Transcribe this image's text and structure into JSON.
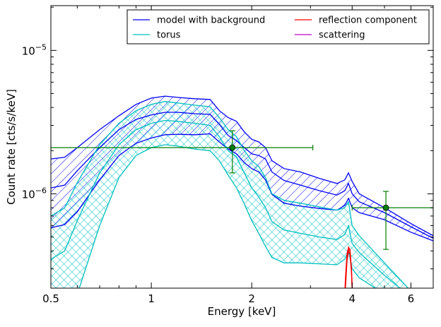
{
  "chart_data": {
    "type": "line",
    "xlabel": "Energy [keV]",
    "ylabel": "Count rate [cts/s/keV]",
    "xscale": "log",
    "yscale": "log",
    "xlim": [
      0.5,
      7.0
    ],
    "ylim": [
      2.2e-07,
      2.05e-05
    ],
    "x_ticks": [
      {
        "value": 0.5,
        "label": "0.5"
      },
      {
        "value": 1,
        "label": "1"
      },
      {
        "value": 2,
        "label": "2"
      },
      {
        "value": 4,
        "label": "4"
      },
      {
        "value": 6,
        "label": "6"
      }
    ],
    "y_ticks": [
      {
        "value": 1e-06,
        "base": "10",
        "exp": "−6"
      },
      {
        "value": 1e-05,
        "base": "10",
        "exp": "−5"
      }
    ],
    "legend": {
      "placement": "top-right",
      "entries": [
        {
          "label": "model with background",
          "color": "#0000ff"
        },
        {
          "label": "torus",
          "color": "#00bfbf"
        },
        {
          "label": "reflection component",
          "color": "#ff0000"
        },
        {
          "label": "scattering",
          "color": "#bf00bf"
        }
      ]
    },
    "series": [
      {
        "name": "model with background",
        "color": "#0000ff",
        "band": true,
        "x": [
          0.5,
          0.55,
          0.6,
          0.7,
          0.8,
          0.9,
          1.0,
          1.1,
          1.2,
          1.35,
          1.5,
          1.6,
          1.7,
          1.8,
          1.9,
          2.0,
          2.1,
          2.2,
          2.3,
          2.5,
          2.8,
          3.2,
          3.6,
          3.8,
          3.9,
          4.0,
          4.2,
          5.0,
          6.0,
          7.0
        ],
        "upper": [
          1.75e-06,
          1.8e-06,
          2.1e-06,
          2.8e-06,
          3.5e-06,
          4.2e-06,
          4.65e-06,
          4.8e-06,
          4.7e-06,
          4.6e-06,
          4.55e-06,
          3.8e-06,
          3.4e-06,
          3.2e-06,
          2.7e-06,
          2.4e-06,
          2.3e-06,
          2.1e-06,
          1.7e-06,
          1.5e-06,
          1.42e-06,
          1.28e-06,
          1.18e-06,
          1.25e-06,
          1.4e-06,
          1.22e-06,
          1e-06,
          8e-07,
          6.2e-07,
          5.1e-07
        ],
        "center": [
          1.1e-06,
          1.15e-06,
          1.45e-06,
          2.1e-06,
          2.8e-06,
          3.3e-06,
          3.55e-06,
          3.7e-06,
          3.7e-06,
          3.62e-06,
          3.58e-06,
          3.05e-06,
          2.55e-06,
          2.35e-06,
          2.1e-06,
          1.9e-06,
          1.85e-06,
          1.75e-06,
          1.42e-06,
          1.24e-06,
          1.15e-06,
          1.05e-06,
          9.8e-07,
          1.05e-06,
          1.18e-06,
          1e-06,
          8.8e-07,
          7.4e-07,
          5.9e-07,
          4.9e-07
        ],
        "lower": [
          5.8e-07,
          6.1e-07,
          7.5e-07,
          1.25e-06,
          1.85e-06,
          2.25e-06,
          2.45e-06,
          2.58e-06,
          2.6e-06,
          2.58e-06,
          2.62e-06,
          2.3e-06,
          2.05e-06,
          1.9e-06,
          1.65e-06,
          1.5e-06,
          1.42e-06,
          1.25e-06,
          9.9e-07,
          8.6e-07,
          8.2e-07,
          7.9e-07,
          7.7e-07,
          8.3e-07,
          9.3e-07,
          8e-07,
          7.4e-07,
          6.6e-07,
          5.4e-07,
          4.7e-07
        ]
      },
      {
        "name": "torus",
        "color": "#00bfbf",
        "band": true,
        "x": [
          0.5,
          0.55,
          0.6,
          0.7,
          0.8,
          0.9,
          1.0,
          1.1,
          1.2,
          1.35,
          1.5,
          1.6,
          1.7,
          1.8,
          1.9,
          2.0,
          2.1,
          2.2,
          2.3,
          2.5,
          2.8,
          3.2,
          3.6,
          3.8,
          3.9,
          4.0,
          4.2,
          5.0,
          6.0
        ],
        "upper": [
          7e-07,
          8e-07,
          1.2e-06,
          2.2e-06,
          3.1e-06,
          3.8e-06,
          4.2e-06,
          4.4e-06,
          4.3e-06,
          4.15e-06,
          4.05e-06,
          3.4e-06,
          2.8e-06,
          2.5e-06,
          2e-06,
          1.7e-06,
          1.55e-06,
          1.3e-06,
          1e-06,
          9e-07,
          8.6e-07,
          8.1e-07,
          7.7e-07,
          8e-07,
          8.8e-07,
          6e-07,
          5.1e-07,
          3.3e-07,
          2.1e-07
        ],
        "center": [
          3.5e-07,
          4e-07,
          6.5e-07,
          1.4e-06,
          2.2e-06,
          2.8e-06,
          3.1e-06,
          3.25e-06,
          3.2e-06,
          3.1e-06,
          3e-06,
          2.5e-06,
          2e-06,
          1.8e-06,
          1.4e-06,
          1.1e-06,
          9.5e-07,
          8e-07,
          6.4e-07,
          5.6e-07,
          5.3e-07,
          5e-07,
          4.8e-07,
          5.2e-07,
          6e-07,
          4.5e-07,
          3.9e-07,
          2.7e-07,
          1.9e-07
        ],
        "lower": [
          1.2e-07,
          1.6e-07,
          2e-07,
          6e-07,
          1.3e-06,
          1.85e-06,
          2.1e-06,
          2.2e-06,
          2.15e-06,
          2.05e-06,
          2e-06,
          1.7e-06,
          1.35e-06,
          1.1e-06,
          8.5e-07,
          6.5e-07,
          5.3e-07,
          4.3e-07,
          3.6e-07,
          3.3e-07,
          3.3e-07,
          3.25e-07,
          3.2e-07,
          3.5e-07,
          4e-07,
          3e-07,
          2.6e-07,
          2e-07,
          1.6e-07
        ]
      },
      {
        "name": "reflection component",
        "color": "#ff0000",
        "band": false,
        "x": [
          3.78,
          3.82,
          3.86,
          3.9,
          3.94,
          3.98,
          4.02,
          4.06
        ],
        "upper": [
          1.5e-07,
          2.6e-07,
          3.8e-07,
          4.25e-07,
          4.1e-07,
          3e-07,
          1.8e-07,
          1.3e-07
        ],
        "center": [
          1.4e-07,
          2.4e-07,
          3.6e-07,
          4.1e-07,
          4e-07,
          2.9e-07,
          1.7e-07,
          1.2e-07
        ],
        "lower": [
          1.3e-07,
          2.2e-07,
          3.4e-07,
          3.95e-07,
          3.85e-07,
          2.8e-07,
          1.6e-07,
          1.1e-07
        ]
      },
      {
        "name": "data",
        "color": "#007f00",
        "points": [
          {
            "x": 1.75,
            "y": 2.1e-06,
            "xerr": [
              0.5,
              3.05
            ],
            "yerr": [
              1.4e-06,
              2.75e-06
            ]
          },
          {
            "x": 5.05,
            "y": 8e-07,
            "xerr": [
              4.0,
              7.0
            ],
            "yerr": [
              4.1e-07,
              1.04e-06
            ]
          }
        ]
      }
    ]
  }
}
